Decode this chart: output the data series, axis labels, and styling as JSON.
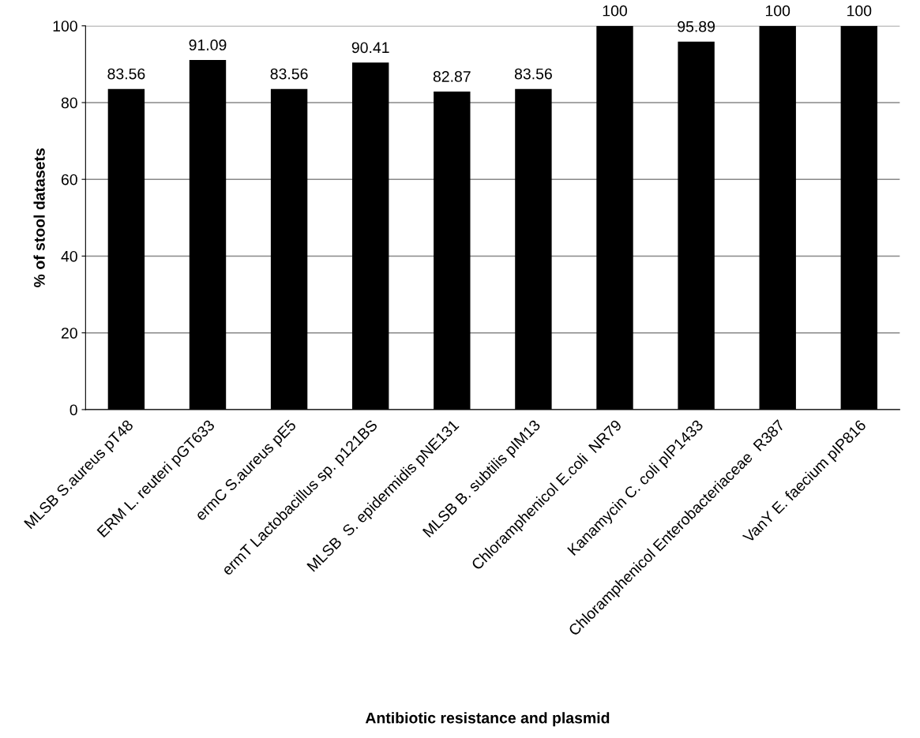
{
  "chart_data": {
    "type": "bar",
    "xlabel": "Antibiotic resistance and plasmid",
    "ylabel": "% of stool datasets",
    "categories": [
      "MLSB S.aureus pT48",
      "ERM L. reuteri pGT633",
      "ermC S.aureus pE5",
      "ermT Lactobacillus sp. p121BS",
      "MLSB  S. epidermidis pNE131",
      "MLSB B. subtilis pIM13",
      "Chloramphenicol E.coli  NR79",
      "Kanamycin C. coli pIP1433",
      "Chloramphenicol Enterobacteriaceae  R387",
      "VanY E. faecium pIP816"
    ],
    "values": [
      83.56,
      91.09,
      83.56,
      90.41,
      82.87,
      83.56,
      100,
      95.89,
      100,
      100
    ],
    "color": "#000000",
    "ylim": [
      0,
      100
    ],
    "yticks": [
      0,
      20,
      40,
      60,
      80,
      100
    ],
    "grid": "y",
    "data_labels": true
  }
}
